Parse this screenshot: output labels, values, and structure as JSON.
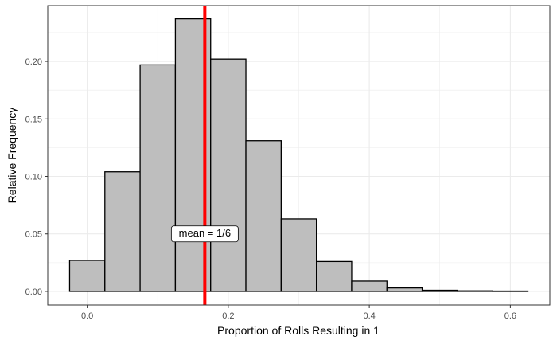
{
  "chart_data": {
    "type": "bar",
    "title": "",
    "xlabel": "Proportion of Rolls Resulting in 1",
    "ylabel": "Relative Frequency",
    "xlim": [
      -0.056,
      0.656
    ],
    "ylim": [
      -0.0118,
      0.2485
    ],
    "x_ticks": [
      0.0,
      0.2,
      0.4,
      0.6
    ],
    "x_tick_labels": [
      "0.0",
      "0.2",
      "0.4",
      "0.6"
    ],
    "y_ticks": [
      0.0,
      0.05,
      0.1,
      0.15,
      0.2
    ],
    "y_tick_labels": [
      "0.00",
      "0.05",
      "0.10",
      "0.15",
      "0.20"
    ],
    "grid": true,
    "bin_width": 0.05,
    "bin_centers": [
      0.0,
      0.05,
      0.1,
      0.15,
      0.2,
      0.25,
      0.3,
      0.35,
      0.4,
      0.45,
      0.5,
      0.55,
      0.6
    ],
    "values": [
      0.027,
      0.104,
      0.197,
      0.237,
      0.202,
      0.131,
      0.063,
      0.026,
      0.009,
      0.003,
      0.001,
      0.0005,
      0.0003
    ],
    "bar_fill": "#bebebe",
    "bar_stroke": "#000000",
    "grid_color": "#ebebeb",
    "mean_line": {
      "x": 0.1667,
      "color": "#ff0000"
    },
    "annotation": {
      "text": "mean = 1/6",
      "x": 0.1667,
      "y": 0.05
    }
  }
}
